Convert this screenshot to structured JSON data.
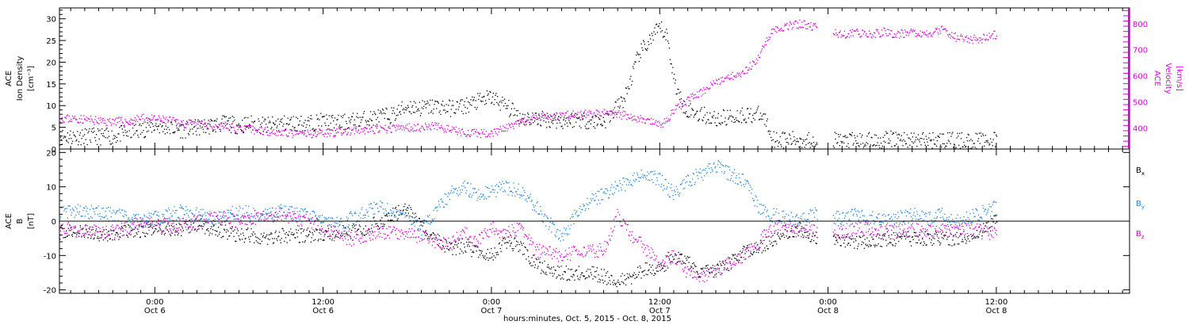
{
  "colors": {
    "black": "#000000",
    "magenta": "#d600d6",
    "blue": "#1f86e0"
  },
  "x_axis": {
    "title": "hours:minutes, Oct.  5, 2015 - Oct.  8, 2015",
    "unit": "hours since 2015-10-05 00:00",
    "range": [
      17.2,
      93.5
    ],
    "ticks": [
      {
        "hour": 24,
        "time": "0:00",
        "date": "Oct 6"
      },
      {
        "hour": 36,
        "time": "12:00",
        "date": "Oct 6"
      },
      {
        "hour": 48,
        "time": "0:00",
        "date": "Oct 7"
      },
      {
        "hour": 60,
        "time": "12:00",
        "date": "Oct 7"
      },
      {
        "hour": 72,
        "time": "0:00",
        "date": "Oct 8"
      },
      {
        "hour": 84,
        "time": "12:00",
        "date": "Oct 8"
      }
    ]
  },
  "chart_data": [
    {
      "type": "scatter",
      "panel": "top",
      "ylabel_left": [
        "ACE",
        "Ion Density",
        "[cm⁻³]"
      ],
      "ylabel_right": [
        "ACE",
        "Velocity",
        "[km/s]"
      ],
      "yticks_left": [
        "0",
        "5",
        "10",
        "15",
        "20",
        "25",
        "30"
      ],
      "yticks_right": [
        "400",
        "500",
        "600",
        "700",
        "800"
      ],
      "ylim_left": [
        0,
        32.5
      ],
      "ylim_right": [
        320,
        860
      ],
      "series": [
        {
          "axis": "left",
          "color": "#000000",
          "x": [
            17.2,
            19,
            21,
            22,
            23,
            24,
            25,
            26,
            27,
            28,
            29,
            30,
            31,
            32,
            33,
            34,
            35,
            36,
            37,
            38,
            39,
            40,
            41,
            41.5,
            42,
            43,
            44,
            45,
            46,
            47,
            48,
            49,
            50,
            51,
            52,
            53,
            54,
            55,
            56,
            56.5,
            57,
            57.5,
            58,
            58.5,
            59,
            59.5,
            60,
            60.5,
            61,
            61.5,
            62,
            63,
            64,
            65,
            66,
            67,
            67.5,
            68,
            69,
            70,
            71,
            72,
            73,
            74,
            75,
            76,
            77,
            78,
            79,
            80,
            81,
            82,
            83,
            84
          ],
          "y": [
            3,
            3,
            3,
            4,
            4.5,
            5.5,
            5,
            4.5,
            5,
            5.5,
            6,
            5.5,
            6,
            5.5,
            6,
            6,
            6,
            6.5,
            6,
            6.5,
            7,
            7.5,
            8,
            9,
            10,
            9.5,
            10,
            9.5,
            10,
            11,
            12,
            10,
            7.5,
            7,
            7,
            6.5,
            7,
            6.5,
            6.5,
            8,
            10,
            12,
            17,
            22,
            24,
            26,
            28,
            26,
            16,
            11,
            9,
            8,
            7,
            7.5,
            8,
            8,
            7,
            2.5,
            2.2,
            2.2,
            2.2,
            2.2,
            2,
            2,
            2,
            2.2,
            2.5,
            2.2,
            2.2,
            2.2,
            2,
            2,
            2,
            2
          ]
        },
        {
          "axis": "right",
          "color": "#d600d6",
          "x": [
            17.2,
            19,
            20.5,
            21,
            22,
            23,
            24,
            25,
            26,
            27,
            28,
            29,
            30,
            31,
            32,
            33,
            34,
            35,
            36,
            37,
            38,
            39,
            40,
            41,
            42,
            43,
            44,
            45,
            46,
            47,
            48,
            49,
            50,
            51,
            52,
            53,
            54,
            55,
            56,
            57,
            58,
            59,
            59.5,
            60,
            60.5,
            61,
            62,
            63,
            64,
            65,
            66,
            66.5,
            67,
            68,
            69,
            70,
            71,
            72,
            73,
            74,
            75,
            76,
            77,
            78,
            79,
            80,
            81,
            82,
            83,
            84
          ],
          "y": [
            440,
            435,
            425,
            430,
            425,
            440,
            435,
            430,
            420,
            415,
            410,
            410,
            400,
            395,
            390,
            385,
            380,
            380,
            385,
            385,
            390,
            395,
            395,
            400,
            405,
            405,
            410,
            395,
            385,
            380,
            385,
            400,
            420,
            440,
            450,
            450,
            455,
            455,
            460,
            455,
            445,
            430,
            420,
            415,
            430,
            470,
            510,
            540,
            580,
            600,
            620,
            640,
            670,
            780,
            790,
            800,
            790,
            770,
            760,
            765,
            760,
            770,
            760,
            770,
            760,
            780,
            750,
            740,
            745,
            760
          ]
        }
      ]
    },
    {
      "type": "scatter",
      "panel": "bottom",
      "ylabel_left": [
        "ACE",
        "B",
        "[nT]"
      ],
      "yticks_left": [
        "-20",
        "-10",
        "0",
        "10",
        "20"
      ],
      "ylim_left": [
        -21,
        21
      ],
      "zero_line": 0,
      "legend": [
        "Bx",
        "By",
        "Bz"
      ],
      "legend_placement": "right",
      "series": [
        {
          "name": "Bx",
          "color": "#000000",
          "x": [
            17.2,
            19,
            21,
            22,
            23,
            24,
            25,
            26,
            27,
            28,
            29,
            30,
            31,
            32,
            33,
            34,
            35,
            36,
            37,
            38,
            39,
            40,
            41,
            42,
            43,
            44,
            45,
            46,
            47,
            48,
            49,
            50,
            51,
            52,
            53,
            54,
            55,
            56,
            57,
            58,
            59,
            60,
            61,
            62,
            63,
            64,
            65,
            66,
            67,
            68,
            69,
            70,
            71,
            72,
            73,
            74,
            75,
            76,
            77,
            78,
            79,
            80,
            81,
            82,
            83,
            84
          ],
          "y": [
            -3,
            -3,
            -4,
            -3,
            -3,
            -2,
            -2,
            -2,
            -1,
            -2,
            -3,
            -4,
            -4,
            -5,
            -4,
            -4,
            -4,
            -4,
            -3,
            -3,
            -2,
            0,
            2,
            4,
            -2,
            -5,
            -8,
            -7,
            -9,
            -10,
            -6,
            -7,
            -12,
            -14,
            -15,
            -15,
            -15,
            -16,
            -17,
            -16,
            -14,
            -14,
            -10,
            -12,
            -15,
            -14,
            -12,
            -9,
            -8,
            -5,
            -3,
            -2,
            -6,
            -6,
            -6,
            -6,
            -6,
            -5,
            -5,
            -5,
            -5,
            -5,
            -5,
            -4,
            -2,
            0
          ]
        },
        {
          "name": "By",
          "color": "#1f86e0",
          "x": [
            17.2,
            19,
            21,
            22,
            23,
            24,
            25,
            26,
            27,
            28,
            29,
            30,
            31,
            32,
            33,
            34,
            35,
            36,
            37,
            38,
            39,
            40,
            41,
            42,
            43,
            44,
            45,
            46,
            47,
            48,
            49,
            50,
            51,
            52,
            53,
            54,
            55,
            56,
            57,
            58,
            59,
            60,
            61,
            62,
            63,
            64,
            65,
            66,
            67,
            68,
            69,
            70,
            71,
            72,
            73,
            74,
            75,
            76,
            77,
            78,
            79,
            80,
            81,
            82,
            83,
            84
          ],
          "y": [
            3,
            3,
            2,
            1,
            0,
            1,
            2,
            3,
            2,
            1,
            2,
            3,
            2,
            2,
            3,
            2,
            2,
            1,
            -1,
            1,
            3,
            4,
            3,
            2,
            -2,
            3,
            8,
            10,
            8,
            9,
            10,
            9,
            5,
            0,
            -5,
            2,
            6,
            8,
            10,
            12,
            14,
            12,
            8,
            12,
            14,
            16,
            14,
            12,
            4,
            2,
            1,
            0,
            2,
            1,
            1,
            2,
            1,
            0,
            1,
            2,
            1,
            2,
            0,
            1,
            3,
            4
          ]
        },
        {
          "name": "Bz",
          "color": "#d600d6",
          "x": [
            17.2,
            19,
            21,
            22,
            23,
            24,
            25,
            26,
            27,
            28,
            29,
            30,
            31,
            32,
            33,
            34,
            35,
            36,
            37,
            38,
            39,
            40,
            41,
            42,
            43,
            44,
            45,
            46,
            47,
            48,
            49,
            50,
            51,
            52,
            53,
            54,
            55,
            56,
            57,
            58,
            59,
            60,
            61,
            62,
            63,
            64,
            65,
            66,
            67,
            68,
            69,
            70,
            71,
            72,
            73,
            74,
            75,
            76,
            77,
            78,
            79,
            80,
            81,
            82,
            83,
            84
          ],
          "y": [
            -2,
            -3,
            -3,
            -2,
            0,
            -1,
            -1,
            -1,
            0,
            1,
            1,
            0,
            1,
            2,
            2,
            1,
            0,
            -2,
            -4,
            -5,
            -4,
            -3,
            -3,
            -4,
            -4,
            -6,
            -7,
            -3,
            -6,
            -2,
            -3,
            -2,
            -8,
            -9,
            -10,
            -9,
            -9,
            -8,
            2,
            -4,
            -8,
            -12,
            -10,
            -15,
            -16,
            -14,
            -12,
            -10,
            -6,
            -2,
            -1,
            -3,
            -2,
            -3,
            -3,
            -2,
            -2,
            -3,
            -3,
            -2,
            -3,
            -2,
            -3,
            -2,
            -3,
            -4
          ]
        }
      ]
    }
  ]
}
